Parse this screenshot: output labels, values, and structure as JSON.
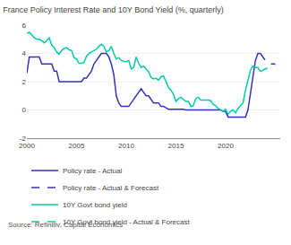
{
  "chart_data": {
    "type": "line",
    "title": "France Policy Interest Rate and 10Y Bond Yield (%, quarterly)",
    "source": "Source: Refinitiv, Capital Economics",
    "xlim": [
      2000,
      2025.5
    ],
    "xticks": [
      2000,
      2005,
      2010,
      2015,
      2020
    ],
    "ylim": [
      -2,
      6
    ],
    "yticks": [
      -2,
      0,
      2,
      4,
      6
    ],
    "grid": "y",
    "legend": "bottom",
    "series": [
      {
        "name": "Policy rate - Actual",
        "color": "#3333bb",
        "line_style": "solid",
        "x": [
          2000.0,
          2000.25,
          2000.5,
          2000.75,
          2001.0,
          2001.25,
          2001.5,
          2001.75,
          2002.0,
          2002.25,
          2002.5,
          2002.75,
          2003.0,
          2003.25,
          2003.5,
          2003.75,
          2004.0,
          2004.25,
          2004.5,
          2004.75,
          2005.0,
          2005.25,
          2005.5,
          2005.75,
          2006.0,
          2006.25,
          2006.5,
          2006.75,
          2007.0,
          2007.25,
          2007.5,
          2007.75,
          2008.0,
          2008.25,
          2008.5,
          2008.75,
          2009.0,
          2009.25,
          2009.5,
          2009.75,
          2010.0,
          2010.25,
          2010.5,
          2010.75,
          2011.0,
          2011.25,
          2011.5,
          2011.75,
          2012.0,
          2012.25,
          2012.5,
          2012.75,
          2013.0,
          2013.25,
          2013.5,
          2013.75,
          2014.0,
          2014.25,
          2014.5,
          2014.75,
          2015.0,
          2015.25,
          2015.5,
          2015.75,
          2016.0,
          2016.25,
          2016.5,
          2016.75,
          2017.0,
          2017.25,
          2017.5,
          2017.75,
          2018.0,
          2018.25,
          2018.5,
          2018.75,
          2019.0,
          2019.25,
          2019.5,
          2019.75,
          2020.0,
          2020.25,
          2020.5,
          2020.75,
          2021.0,
          2021.25,
          2021.5,
          2021.75,
          2022.0,
          2022.25,
          2022.5,
          2022.75,
          2023.0,
          2023.25,
          2023.5
        ],
        "values": [
          2.6,
          3.75,
          3.75,
          3.75,
          3.75,
          3.75,
          3.25,
          3.25,
          3.25,
          3.25,
          3.25,
          2.75,
          2.75,
          2.0,
          2.0,
          2.0,
          2.0,
          2.0,
          2.0,
          2.0,
          2.0,
          2.0,
          2.0,
          2.25,
          2.25,
          2.5,
          2.75,
          3.25,
          3.5,
          3.75,
          4.0,
          4.0,
          4.0,
          3.75,
          3.25,
          2.5,
          1.0,
          0.5,
          0.25,
          0.25,
          0.25,
          0.25,
          0.5,
          0.75,
          1.0,
          1.25,
          1.5,
          1.25,
          1.0,
          1.0,
          0.75,
          0.5,
          0.5,
          0.5,
          0.25,
          0.25,
          0.15,
          0.05,
          0.05,
          0.05,
          0.05,
          0.05,
          0.05,
          0.05,
          0.0,
          0.0,
          0.0,
          0.0,
          0.0,
          0.0,
          0.0,
          0.0,
          0.0,
          0.0,
          0.0,
          0.0,
          0.0,
          0.0,
          0.0,
          -0.1,
          -0.1,
          -0.5,
          -0.5,
          -0.5,
          -0.5,
          -0.5,
          -0.5,
          -0.5,
          -0.5,
          0.0,
          1.25,
          2.5,
          3.5,
          4.0,
          4.0
        ]
      },
      {
        "name": "Policy rate - Actual & Forecast",
        "color": "#3333bb",
        "line_style": "dashed",
        "x": [
          2023.5,
          2023.75,
          2024.0,
          2024.25,
          2024.5,
          2024.75,
          2025.0
        ],
        "values": [
          4.0,
          3.75,
          3.5,
          3.25,
          3.25,
          3.25,
          3.25
        ]
      },
      {
        "name": "10Y Govt bond yield",
        "color": "#00ccaa",
        "line_style": "solid",
        "x": [
          2000.0,
          2000.25,
          2000.5,
          2000.75,
          2001.0,
          2001.25,
          2001.5,
          2001.75,
          2002.0,
          2002.25,
          2002.5,
          2002.75,
          2003.0,
          2003.25,
          2003.5,
          2003.75,
          2004.0,
          2004.25,
          2004.5,
          2004.75,
          2005.0,
          2005.25,
          2005.5,
          2005.75,
          2006.0,
          2006.25,
          2006.5,
          2006.75,
          2007.0,
          2007.25,
          2007.5,
          2007.75,
          2008.0,
          2008.25,
          2008.5,
          2008.75,
          2009.0,
          2009.25,
          2009.5,
          2009.75,
          2010.0,
          2010.25,
          2010.5,
          2010.75,
          2011.0,
          2011.25,
          2011.5,
          2011.75,
          2012.0,
          2012.25,
          2012.5,
          2012.75,
          2013.0,
          2013.25,
          2013.5,
          2013.75,
          2014.0,
          2014.25,
          2014.5,
          2014.75,
          2015.0,
          2015.25,
          2015.5,
          2015.75,
          2016.0,
          2016.25,
          2016.5,
          2016.75,
          2017.0,
          2017.25,
          2017.5,
          2017.75,
          2018.0,
          2018.25,
          2018.5,
          2018.75,
          2019.0,
          2019.25,
          2019.5,
          2019.75,
          2020.0,
          2020.25,
          2020.5,
          2020.75,
          2021.0,
          2021.25,
          2021.5,
          2021.75,
          2022.0,
          2022.25,
          2022.5,
          2022.75,
          2023.0,
          2023.25,
          2023.5
        ],
        "values": [
          5.4,
          5.5,
          5.3,
          5.1,
          5.0,
          5.0,
          4.9,
          4.75,
          4.9,
          5.1,
          4.6,
          4.4,
          4.1,
          3.95,
          4.2,
          4.35,
          4.4,
          4.25,
          4.2,
          3.7,
          3.6,
          3.3,
          3.3,
          3.35,
          3.8,
          4.0,
          4.1,
          4.2,
          4.3,
          4.5,
          4.65,
          4.5,
          4.1,
          4.2,
          4.5,
          4.0,
          3.6,
          3.7,
          3.5,
          3.45,
          3.4,
          3.5,
          2.9,
          3.0,
          3.75,
          3.3,
          3.0,
          3.1,
          2.9,
          2.7,
          2.3,
          2.2,
          2.25,
          2.1,
          2.35,
          2.4,
          2.0,
          1.6,
          1.4,
          1.1,
          0.6,
          0.8,
          0.9,
          0.75,
          0.6,
          0.6,
          0.25,
          0.3,
          0.8,
          0.9,
          0.7,
          0.7,
          0.7,
          0.7,
          0.65,
          0.4,
          0.3,
          0.1,
          0.0,
          -0.1,
          0.05,
          -0.3,
          -0.1,
          0.0,
          -0.2,
          0.1,
          0.3,
          0.5,
          1.4,
          2.2,
          2.8,
          3.1,
          3.0,
          3.0,
          2.7
        ]
      },
      {
        "name": "10Y Govt bond yield - Actual & Forecast",
        "color": "#00ccaa",
        "line_style": "dashed",
        "x": [
          2023.5,
          2023.75,
          2024.0,
          2024.25,
          2024.5,
          2024.75,
          2025.0
        ],
        "values": [
          2.7,
          2.8,
          2.9,
          3.0,
          3.0,
          3.1,
          3.2
        ]
      }
    ]
  }
}
